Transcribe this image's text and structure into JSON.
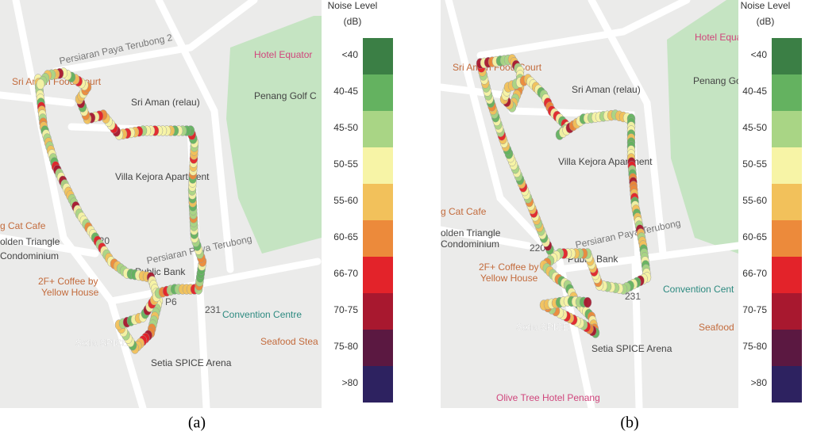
{
  "panels": [
    {
      "caption": "(a)",
      "legend": {
        "title": [
          "Noise Level",
          "(dB)"
        ],
        "labels": [
          "<40",
          "40-45",
          "45-50",
          "50-55",
          "55-60",
          "60-65",
          "66-70",
          "70-75",
          "75-80",
          ">80"
        ],
        "colors": [
          "#3b7f45",
          "#64b260",
          "#a9d585",
          "#f7f4a6",
          "#f2c15b",
          "#ec8a3b",
          "#e3232a",
          "#a8182f",
          "#5b1841",
          "#2d2260"
        ]
      },
      "map_labels": [
        "Persiaran Paya Terubong 2",
        "Sri Aman Food Court",
        "Sri Aman (relau)",
        "Hotel Equator",
        "Penang Golf C",
        "Villa Kejora Apartment",
        "g Cat Cafe",
        "olden Triangle",
        "Condominium",
        "2F+ Coffee by",
        "Yellow House",
        "Public Bank",
        "Setia SPICE",
        "Convention Centre",
        "Seafood Stea",
        "Setia SPICE",
        "Setia SPICE Arena",
        "220",
        "P6",
        "231",
        "Persiaran Paya Terubong"
      ]
    },
    {
      "caption": "(b)",
      "legend": {
        "title": [
          "Noise Level",
          "(dB)"
        ],
        "labels": [
          "<40",
          "40-45",
          "45-50",
          "50-55",
          "55-60",
          "60-65",
          "66-70",
          "70-75",
          "75-80",
          ">80"
        ],
        "colors": [
          "#3b7f45",
          "#64b260",
          "#a9d585",
          "#f7f4a6",
          "#f2c15b",
          "#ec8a3b",
          "#e3232a",
          "#a8182f",
          "#5b1841",
          "#2d2260"
        ]
      },
      "map_labels": [
        "Hotel Equator",
        "Sri Aman Food Court",
        "Sri Aman (relau)",
        "Penang Golf Clu",
        "Villa Kejora Apartment",
        "g Cat Cafe",
        "olden Triangle",
        "Condominium",
        "2F+ Coffee by",
        "Yellow House",
        "Public Bank",
        "Setia SPICE",
        "Convention Cent",
        "Seafood",
        "Setia SPICE",
        "Setia SPICE Arena",
        "Olive Tree Hotel Penang",
        "220",
        "P6",
        "231",
        "Persiaran Paya Terubong"
      ]
    }
  ]
}
